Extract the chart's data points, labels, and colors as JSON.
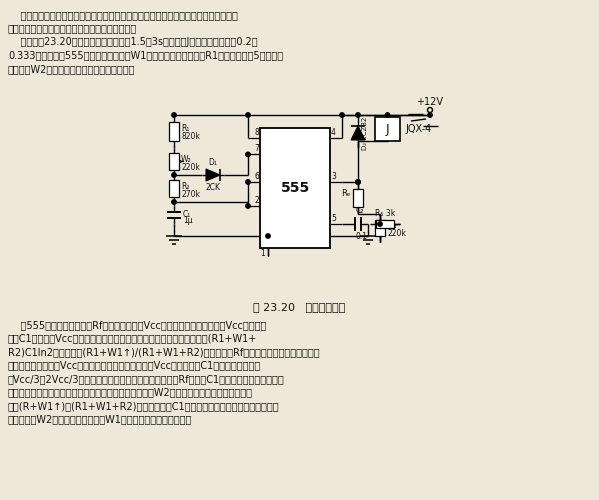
{
  "bg_color": "#ede8d8",
  "text_color": "#111111",
  "title": "图 23.20   可调间歇开关",
  "header_lines": [
    "    该开关电路是用于电动机调速控制的，其间歇周期和间歇时间均可分别独立调节而互",
    "不影响，也可作为其他控制振荡信号发生器使用。",
    "    电路见图23.20所示。这里设定周期为1.5～3s，继电器J吸动时间占空比为0.2～",
    "0.333连续可调。555构成多谐振荡器，W1调节输出脉冲占空比，R1构成控制端第5脚的反馈",
    "电路，用W2可调节振荡周期而不影响占空比。"
  ],
  "footer_lines": [
    "    按555的通常用法是不设Rf的，触发电平是Vcc的三分之一，复位阈值是Vcc的三分之",
    "二，C1上电压在Vcc的三分之一与三分之二之间充放电反复变化，周期为(R1+W1+",
    "R2)C1ln2，占空比为(R1+W1↑)/(R1+W1+R2)。现在有了Rf反馈，首先使周期变长了，因",
    "为这使触发电平小于Vcc的三分之一，而复位阈值大于Vcc三分之二，C1上电压变化范围超",
    "出Vcc/3～2Vcc/3，就需变更长的充电时间和放电时间，Rf越小，C1上电压就越要向高、低两",
    "端扩展，充放电时间也就越长，振荡周期也就越长，所以W2可以调节周期，但这时占空比却",
    "仍由(R+W1↑)和(R1+W1+R2)的比例决定，C1的充电时间长则放电时间也按比例地",
    "增长，所以W2调节不影响占空比，W1可以单独用作占空比调节。"
  ]
}
